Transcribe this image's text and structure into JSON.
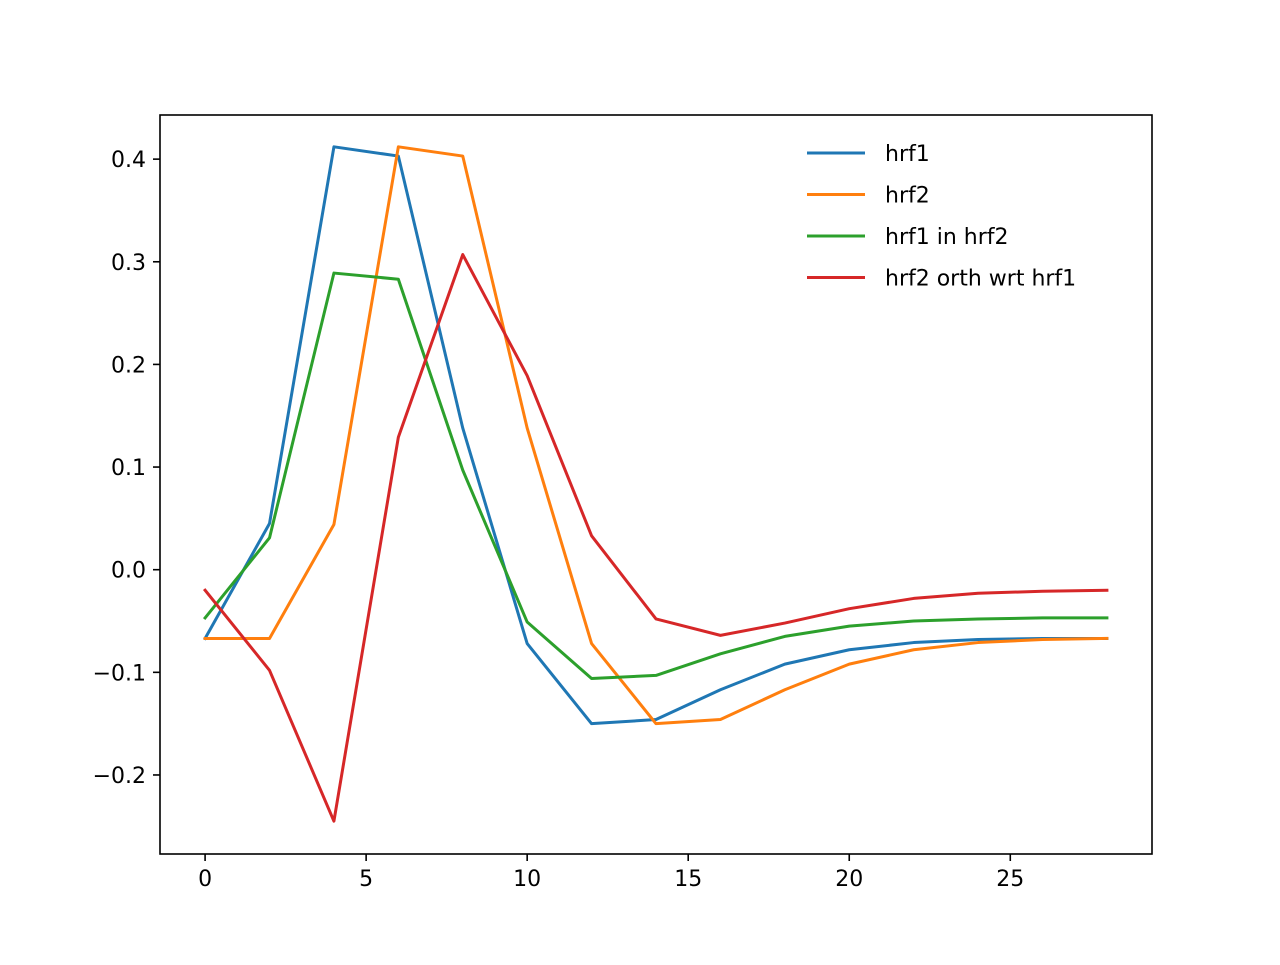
{
  "chart_data": {
    "type": "line",
    "title": "",
    "xlabel": "",
    "ylabel": "",
    "xlim": [
      -1.4,
      29.4
    ],
    "ylim": [
      -0.277,
      0.443
    ],
    "xticks": [
      0,
      5,
      10,
      15,
      20,
      25
    ],
    "xtick_labels": [
      "0",
      "5",
      "10",
      "15",
      "20",
      "25"
    ],
    "yticks": [
      -0.2,
      -0.1,
      0.0,
      0.1,
      0.2,
      0.3,
      0.4
    ],
    "ytick_labels": [
      "−0.2",
      "−0.1",
      "0.0",
      "0.1",
      "0.2",
      "0.3",
      "0.4"
    ],
    "grid": false,
    "legend_position": "top-right",
    "x": [
      0,
      2,
      4,
      6,
      8,
      10,
      12,
      14,
      16,
      18,
      20,
      22,
      24,
      26,
      28
    ],
    "series": [
      {
        "name": "hrf1",
        "color": "#1f77b4",
        "values": [
          -0.067,
          0.045,
          0.412,
          0.403,
          0.138,
          -0.072,
          -0.15,
          -0.146,
          -0.117,
          -0.092,
          -0.078,
          -0.071,
          -0.068,
          -0.067,
          -0.067
        ]
      },
      {
        "name": "hrf2",
        "color": "#ff7f0e",
        "values": [
          -0.067,
          -0.067,
          0.044,
          0.412,
          0.403,
          0.138,
          -0.072,
          -0.15,
          -0.146,
          -0.117,
          -0.092,
          -0.078,
          -0.071,
          -0.068,
          -0.067
        ]
      },
      {
        "name": "hrf1 in hrf2",
        "color": "#2ca02c",
        "values": [
          -0.047,
          0.031,
          0.289,
          0.283,
          0.097,
          -0.051,
          -0.106,
          -0.103,
          -0.082,
          -0.065,
          -0.055,
          -0.05,
          -0.048,
          -0.047,
          -0.047
        ]
      },
      {
        "name": "hrf2 orth wrt hrf1",
        "color": "#d62728",
        "values": [
          -0.02,
          -0.098,
          -0.245,
          0.129,
          0.307,
          0.189,
          0.033,
          -0.048,
          -0.064,
          -0.052,
          -0.038,
          -0.028,
          -0.023,
          -0.021,
          -0.02
        ]
      }
    ]
  }
}
